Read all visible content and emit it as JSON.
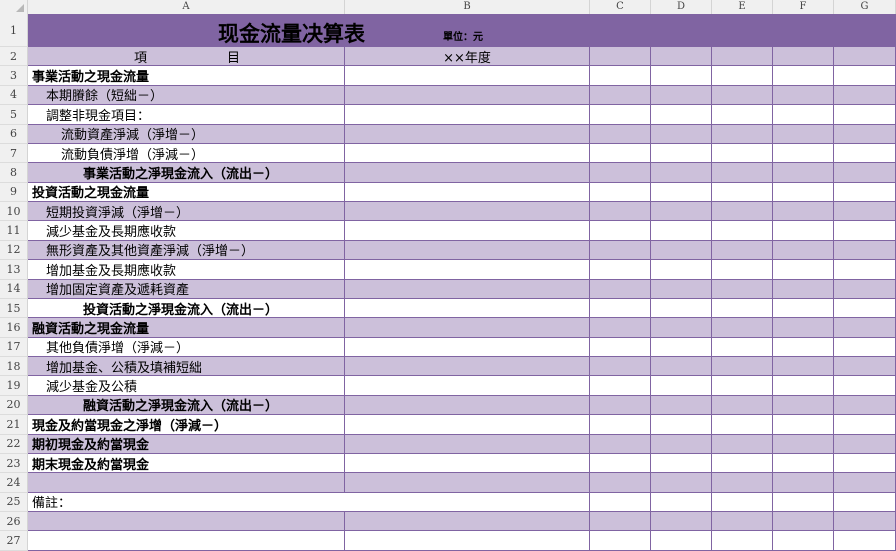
{
  "columns": [
    "A",
    "B",
    "C",
    "D",
    "E",
    "F",
    "G"
  ],
  "title": "现金流量决算表",
  "unit": "單位：元",
  "header": {
    "item_1": "項",
    "item_2": "目",
    "year": "××年度"
  },
  "row_numbers": [
    "1",
    "2",
    "3",
    "4",
    "5",
    "6",
    "7",
    "8",
    "9",
    "10",
    "11",
    "12",
    "13",
    "14",
    "15",
    "16",
    "17",
    "18",
    "19",
    "20",
    "21",
    "22",
    "23",
    "24",
    "25",
    "26",
    "27"
  ],
  "rows": [
    {
      "text": "事業活動之現金流量",
      "style": "bold"
    },
    {
      "text": "本期賸餘（短絀－）",
      "style": "indent1"
    },
    {
      "text": "調整非現金項目：",
      "style": "indent1"
    },
    {
      "text": "流動資產淨減（淨增－）",
      "style": "indent2"
    },
    {
      "text": "流動負債淨增（淨減－）",
      "style": "indent2"
    },
    {
      "text": "事業活動之淨現金流入（流出－）",
      "style": "subtotal"
    },
    {
      "text": "投資活動之現金流量",
      "style": "bold"
    },
    {
      "text": "短期投資淨減（淨增－）",
      "style": "indent1"
    },
    {
      "text": "減少基金及長期應收款",
      "style": "indent1"
    },
    {
      "text": "無形資產及其他資產淨減（淨增－）",
      "style": "indent1"
    },
    {
      "text": "增加基金及長期應收款",
      "style": "indent1"
    },
    {
      "text": "增加固定資產及遞耗資產",
      "style": "indent1"
    },
    {
      "text": "投資活動之淨現金流入（流出－）",
      "style": "subtotal"
    },
    {
      "text": "融資活動之現金流量",
      "style": "bold"
    },
    {
      "text": "其他負債淨增（淨減－）",
      "style": "indent1"
    },
    {
      "text": "增加基金、公積及填補短絀",
      "style": "indent1"
    },
    {
      "text": "減少基金及公積",
      "style": "indent1"
    },
    {
      "text": "融資活動之淨現金流入（流出－）",
      "style": "subtotal"
    },
    {
      "text": "現金及約當現金之淨增（淨減－）",
      "style": "bold"
    },
    {
      "text": "期初現金及約當現金",
      "style": "bold"
    },
    {
      "text": "期末現金及約當現金",
      "style": "bold"
    },
    {
      "text": "",
      "style": "plain"
    },
    {
      "text": "備註：",
      "style": "note"
    },
    {
      "text": "",
      "style": "plain"
    },
    {
      "text": "",
      "style": "plain"
    }
  ],
  "colors": {
    "header_band": "#8064a2",
    "stripe": "#ccc0da",
    "border": "#8064a2"
  }
}
